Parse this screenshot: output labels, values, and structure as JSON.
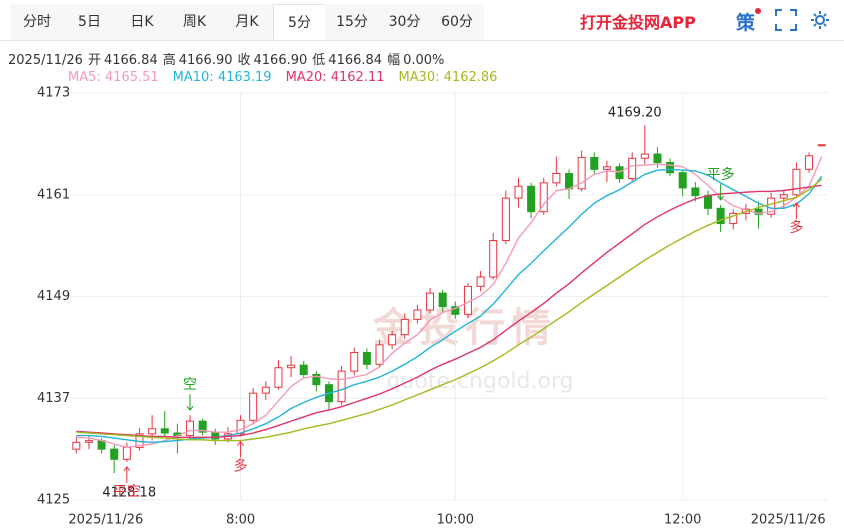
{
  "header": {
    "tabs": [
      "分时",
      "5日",
      "日K",
      "周K",
      "月K",
      "5分",
      "15分",
      "30分",
      "60分"
    ],
    "active": "5分",
    "app_link": "打开金投网APP",
    "strategy": "策"
  },
  "info": {
    "date": "2025/11/26",
    "items": [
      {
        "label": "开",
        "value": "4166.84"
      },
      {
        "label": "高",
        "value": "4166.90"
      },
      {
        "label": "收",
        "value": "4166.90"
      },
      {
        "label": "低",
        "value": "4166.84"
      },
      {
        "label": "幅",
        "value": "0.00%"
      }
    ]
  },
  "chart_data": {
    "type": "candlestick",
    "up_color": "#e8343f",
    "down_color": "#22a122",
    "ylim": [
      4125,
      4173
    ],
    "yticks": [
      4125,
      4137,
      4149,
      4161,
      4173
    ],
    "xlim": [
      -0.5,
      59.5
    ],
    "xticks": [
      {
        "value": 0,
        "label": "2025/11/26"
      },
      {
        "value": 13,
        "label": "8:00"
      },
      {
        "value": 30,
        "label": "10:00"
      },
      {
        "value": 48,
        "label": "12:00"
      },
      {
        "value": 59,
        "label": "2025/11/26"
      }
    ],
    "grid": true,
    "candles": [
      [
        4131,
        4132.5,
        4130.5,
        4131.8
      ],
      [
        4131.8,
        4132.6,
        4131,
        4132
      ],
      [
        4132,
        4132.3,
        4130.5,
        4131
      ],
      [
        4131,
        4131.5,
        4128.18,
        4129.8
      ],
      [
        4129.8,
        4131.8,
        4129.5,
        4131.2
      ],
      [
        4131.2,
        4133.5,
        4130.8,
        4132.8
      ],
      [
        4132.8,
        4135,
        4132,
        4133.4
      ],
      [
        4133.4,
        4135.5,
        4132.5,
        4132.9
      ],
      [
        4132.9,
        4134,
        4130.5,
        4132.6
      ],
      [
        4132.6,
        4135,
        4132.2,
        4134.3
      ],
      [
        4134.3,
        4134.6,
        4132.6,
        4133
      ],
      [
        4133,
        4133.4,
        4131.5,
        4132.2
      ],
      [
        4132.2,
        4133.6,
        4131.8,
        4132.8
      ],
      [
        4132.8,
        4135,
        4132.5,
        4134.4
      ],
      [
        4134.4,
        4138.2,
        4134,
        4137.6
      ],
      [
        4137.6,
        4139,
        4136.8,
        4138.3
      ],
      [
        4138.3,
        4141.5,
        4138,
        4140.6
      ],
      [
        4140.6,
        4142,
        4139.5,
        4140.9
      ],
      [
        4140.9,
        4141.4,
        4139.3,
        4139.8
      ],
      [
        4139.8,
        4140.2,
        4137.8,
        4138.6
      ],
      [
        4138.6,
        4139,
        4135.6,
        4136.6
      ],
      [
        4136.6,
        4140.8,
        4136.2,
        4140.2
      ],
      [
        4140.2,
        4143,
        4139.7,
        4142.4
      ],
      [
        4142.4,
        4142.9,
        4140.4,
        4141
      ],
      [
        4141,
        4143.9,
        4140.6,
        4143.3
      ],
      [
        4143.3,
        4145,
        4142.8,
        4144.5
      ],
      [
        4144.5,
        4147,
        4144,
        4146.3
      ],
      [
        4146.3,
        4148,
        4145.8,
        4147.4
      ],
      [
        4147.4,
        4150,
        4147,
        4149.4
      ],
      [
        4149.4,
        4149.8,
        4147.2,
        4147.8
      ],
      [
        4147.8,
        4148.4,
        4146.4,
        4146.9
      ],
      [
        4146.9,
        4150.6,
        4146.5,
        4150.2
      ],
      [
        4150.2,
        4152,
        4149.6,
        4151.3
      ],
      [
        4151.3,
        4156.5,
        4151,
        4155.6
      ],
      [
        4155.6,
        4161.5,
        4155.2,
        4160.6
      ],
      [
        4160.6,
        4163,
        4159.5,
        4162
      ],
      [
        4162,
        4162.4,
        4158.2,
        4159
      ],
      [
        4159,
        4163,
        4158.6,
        4162.4
      ],
      [
        4162.4,
        4165.5,
        4162,
        4163.5
      ],
      [
        4163.5,
        4164,
        4160.5,
        4161.7
      ],
      [
        4161.7,
        4166.2,
        4161.4,
        4165.4
      ],
      [
        4165.4,
        4166,
        4163.4,
        4164
      ],
      [
        4164,
        4165,
        4162.5,
        4164.3
      ],
      [
        4164.3,
        4164.7,
        4162.4,
        4162.9
      ],
      [
        4162.9,
        4166,
        4162.5,
        4165.3
      ],
      [
        4165.3,
        4169.2,
        4164.6,
        4165.8
      ],
      [
        4165.8,
        4166.6,
        4164.2,
        4164.8
      ],
      [
        4164.8,
        4165.3,
        4163.2,
        4163.6
      ],
      [
        4163.6,
        4164,
        4160.8,
        4161.8
      ],
      [
        4161.8,
        4162.5,
        4160.2,
        4160.9
      ],
      [
        4160.9,
        4161.5,
        4158.6,
        4159.4
      ],
      [
        4159.4,
        4159.8,
        4156.6,
        4157.6
      ],
      [
        4157.6,
        4159.3,
        4156.9,
        4158.8
      ],
      [
        4158.8,
        4159.9,
        4158,
        4159.3
      ],
      [
        4159.3,
        4160.2,
        4157,
        4158.7
      ],
      [
        4158.7,
        4161.2,
        4158.3,
        4160.6
      ],
      [
        4160.6,
        4161.5,
        4159.4,
        4161
      ],
      [
        4161,
        4164.8,
        4160.6,
        4164
      ],
      [
        4164,
        4166,
        4163.6,
        4165.6
      ],
      [
        4166.84,
        4166.9,
        4166.84,
        4166.9
      ]
    ],
    "series": [
      {
        "name": "MA5",
        "label": "MA5: 4165.51",
        "color": "#f29bb8",
        "values": [
          4132.4,
          4132.3,
          4132,
          4131.6,
          4131.2,
          4131.4,
          4131.6,
          4132,
          4132.6,
          4133.2,
          4133.2,
          4133,
          4133,
          4133.3,
          4134,
          4135,
          4136.7,
          4138.4,
          4139.4,
          4139.6,
          4139.3,
          4139.2,
          4139.5,
          4139.8,
          4140.7,
          4142.3,
          4143.5,
          4144.5,
          4146.2,
          4147.1,
          4147.6,
          4148.3,
          4149.1,
          4150.4,
          4152.9,
          4155.9,
          4157.7,
          4159.9,
          4161.5,
          4161.7,
          4162.4,
          4163.4,
          4163.8,
          4163.7,
          4164.4,
          4164.5,
          4164.6,
          4164.5,
          4164.3,
          4163.4,
          4162.1,
          4160.7,
          4159.7,
          4159.2,
          4158.8,
          4159,
          4159.7,
          4160.7,
          4162,
          4165.51
        ]
      },
      {
        "name": "MA10",
        "label": "MA10: 4163.19",
        "color": "#22b4d8",
        "values": [
          4132.6,
          4132.6,
          4132.5,
          4132.3,
          4132.1,
          4131.9,
          4131.8,
          4131.9,
          4132,
          4132.2,
          4132.3,
          4132.4,
          4132.6,
          4132.9,
          4133.4,
          4134,
          4134.8,
          4135.8,
          4136.5,
          4137.1,
          4137.6,
          4138,
          4138.6,
          4139,
          4139.5,
          4140.2,
          4141,
          4141.9,
          4143,
          4143.9,
          4144.9,
          4145.8,
          4146.7,
          4148.1,
          4149.8,
          4151.6,
          4152.9,
          4154.4,
          4155.8,
          4157.2,
          4158.7,
          4160,
          4160.9,
          4161.6,
          4162.5,
          4163.4,
          4163.9,
          4164,
          4163.9,
          4163.8,
          4163.3,
          4162.4,
          4161.6,
          4160.8,
          4160,
          4159.4,
          4159.4,
          4159.9,
          4161.1,
          4163.19
        ]
      },
      {
        "name": "MA20",
        "label": "MA20: 4162.11",
        "color": "#e0336a",
        "values": [
          4133.1,
          4133,
          4132.9,
          4132.8,
          4132.7,
          4132.6,
          4132.5,
          4132.5,
          4132.4,
          4132.4,
          4132.4,
          4132.4,
          4132.5,
          4132.6,
          4132.9,
          4133.3,
          4133.8,
          4134.3,
          4134.8,
          4135.3,
          4135.6,
          4136,
          4136.5,
          4137,
          4137.5,
          4138.1,
          4138.8,
          4139.5,
          4140.3,
          4141,
          4141.6,
          4142.3,
          4143,
          4143.9,
          4145,
          4146.1,
          4147.1,
          4148.2,
          4149.4,
          4150.5,
          4151.8,
          4153,
          4154.2,
          4155.3,
          4156.4,
          4157.5,
          4158.4,
          4159.2,
          4159.9,
          4160.5,
          4160.9,
          4161.1,
          4161.2,
          4161.3,
          4161.4,
          4161.4,
          4161.5,
          4161.7,
          4161.9,
          4162.11
        ]
      },
      {
        "name": "MA30",
        "label": "MA30: 4162.86",
        "color": "#9ebc1e",
        "values": [
          4133,
          4132.9,
          4132.8,
          4132.7,
          4132.6,
          4132.5,
          4132.4,
          4132.3,
          4132.2,
          4132.1,
          4132.1,
          4132,
          4132,
          4132,
          4132.2,
          4132.4,
          4132.7,
          4133,
          4133.4,
          4133.7,
          4134,
          4134.4,
          4134.8,
          4135.2,
          4135.7,
          4136.2,
          4136.8,
          4137.4,
          4138,
          4138.6,
          4139.2,
          4139.9,
          4140.6,
          4141.4,
          4142.3,
          4143.3,
          4144.2,
          4145.2,
          4146.2,
          4147.2,
          4148.3,
          4149.3,
          4150.3,
          4151.3,
          4152.3,
          4153.3,
          4154.2,
          4155.1,
          4155.9,
          4156.7,
          4157.4,
          4158,
          4158.5,
          4159,
          4159.5,
          4159.9,
          4160.3,
          4160.7,
          4161.6,
          4162.86
        ]
      }
    ],
    "extremes": [
      {
        "value": 4169.2,
        "label": "4169.20",
        "side": "high"
      },
      {
        "value": 4128.18,
        "label": "4128.18",
        "side": "low"
      }
    ],
    "signals": [
      {
        "label": "空",
        "x": 9,
        "direction": "down",
        "color": "#22a122"
      },
      {
        "label": "平空",
        "x": 4,
        "direction": "up",
        "color": "#e8343f"
      },
      {
        "label": "多",
        "x": 13,
        "direction": "up",
        "color": "#e8343f"
      },
      {
        "label": "平多",
        "x": 51,
        "direction": "down",
        "color": "#22a122"
      },
      {
        "label": "多",
        "x": 57,
        "direction": "up",
        "color": "#e8343f"
      }
    ],
    "watermark": [
      "金投行情",
      "quote.cngold.org"
    ]
  }
}
